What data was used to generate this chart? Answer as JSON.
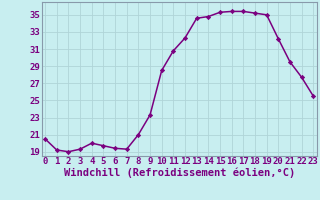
{
  "x": [
    0,
    1,
    2,
    3,
    4,
    5,
    6,
    7,
    8,
    9,
    10,
    11,
    12,
    13,
    14,
    15,
    16,
    17,
    18,
    19,
    20,
    21,
    22,
    23
  ],
  "y": [
    20.5,
    19.2,
    19.0,
    19.3,
    20.0,
    19.7,
    19.4,
    19.3,
    21.0,
    23.3,
    28.5,
    30.8,
    32.3,
    34.6,
    34.8,
    35.3,
    35.4,
    35.4,
    35.2,
    35.0,
    32.2,
    29.5,
    27.7,
    25.5
  ],
  "line_color": "#7B0080",
  "marker": "D",
  "marker_size": 2.2,
  "bg_color": "#c8eef0",
  "grid_color": "#b0d4d8",
  "xlabel": "Windchill (Refroidissement éolien,°C)",
  "ylim": [
    18.5,
    36.5
  ],
  "xlim": [
    -0.3,
    23.3
  ],
  "yticks": [
    19,
    21,
    23,
    25,
    27,
    29,
    31,
    33,
    35
  ],
  "xticks": [
    0,
    1,
    2,
    3,
    4,
    5,
    6,
    7,
    8,
    9,
    10,
    11,
    12,
    13,
    14,
    15,
    16,
    17,
    18,
    19,
    20,
    21,
    22,
    23
  ],
  "font_color": "#7B0080",
  "tick_fontsize": 6.5,
  "xlabel_fontsize": 7.5,
  "linewidth": 1.1,
  "border_color": "#8899aa"
}
